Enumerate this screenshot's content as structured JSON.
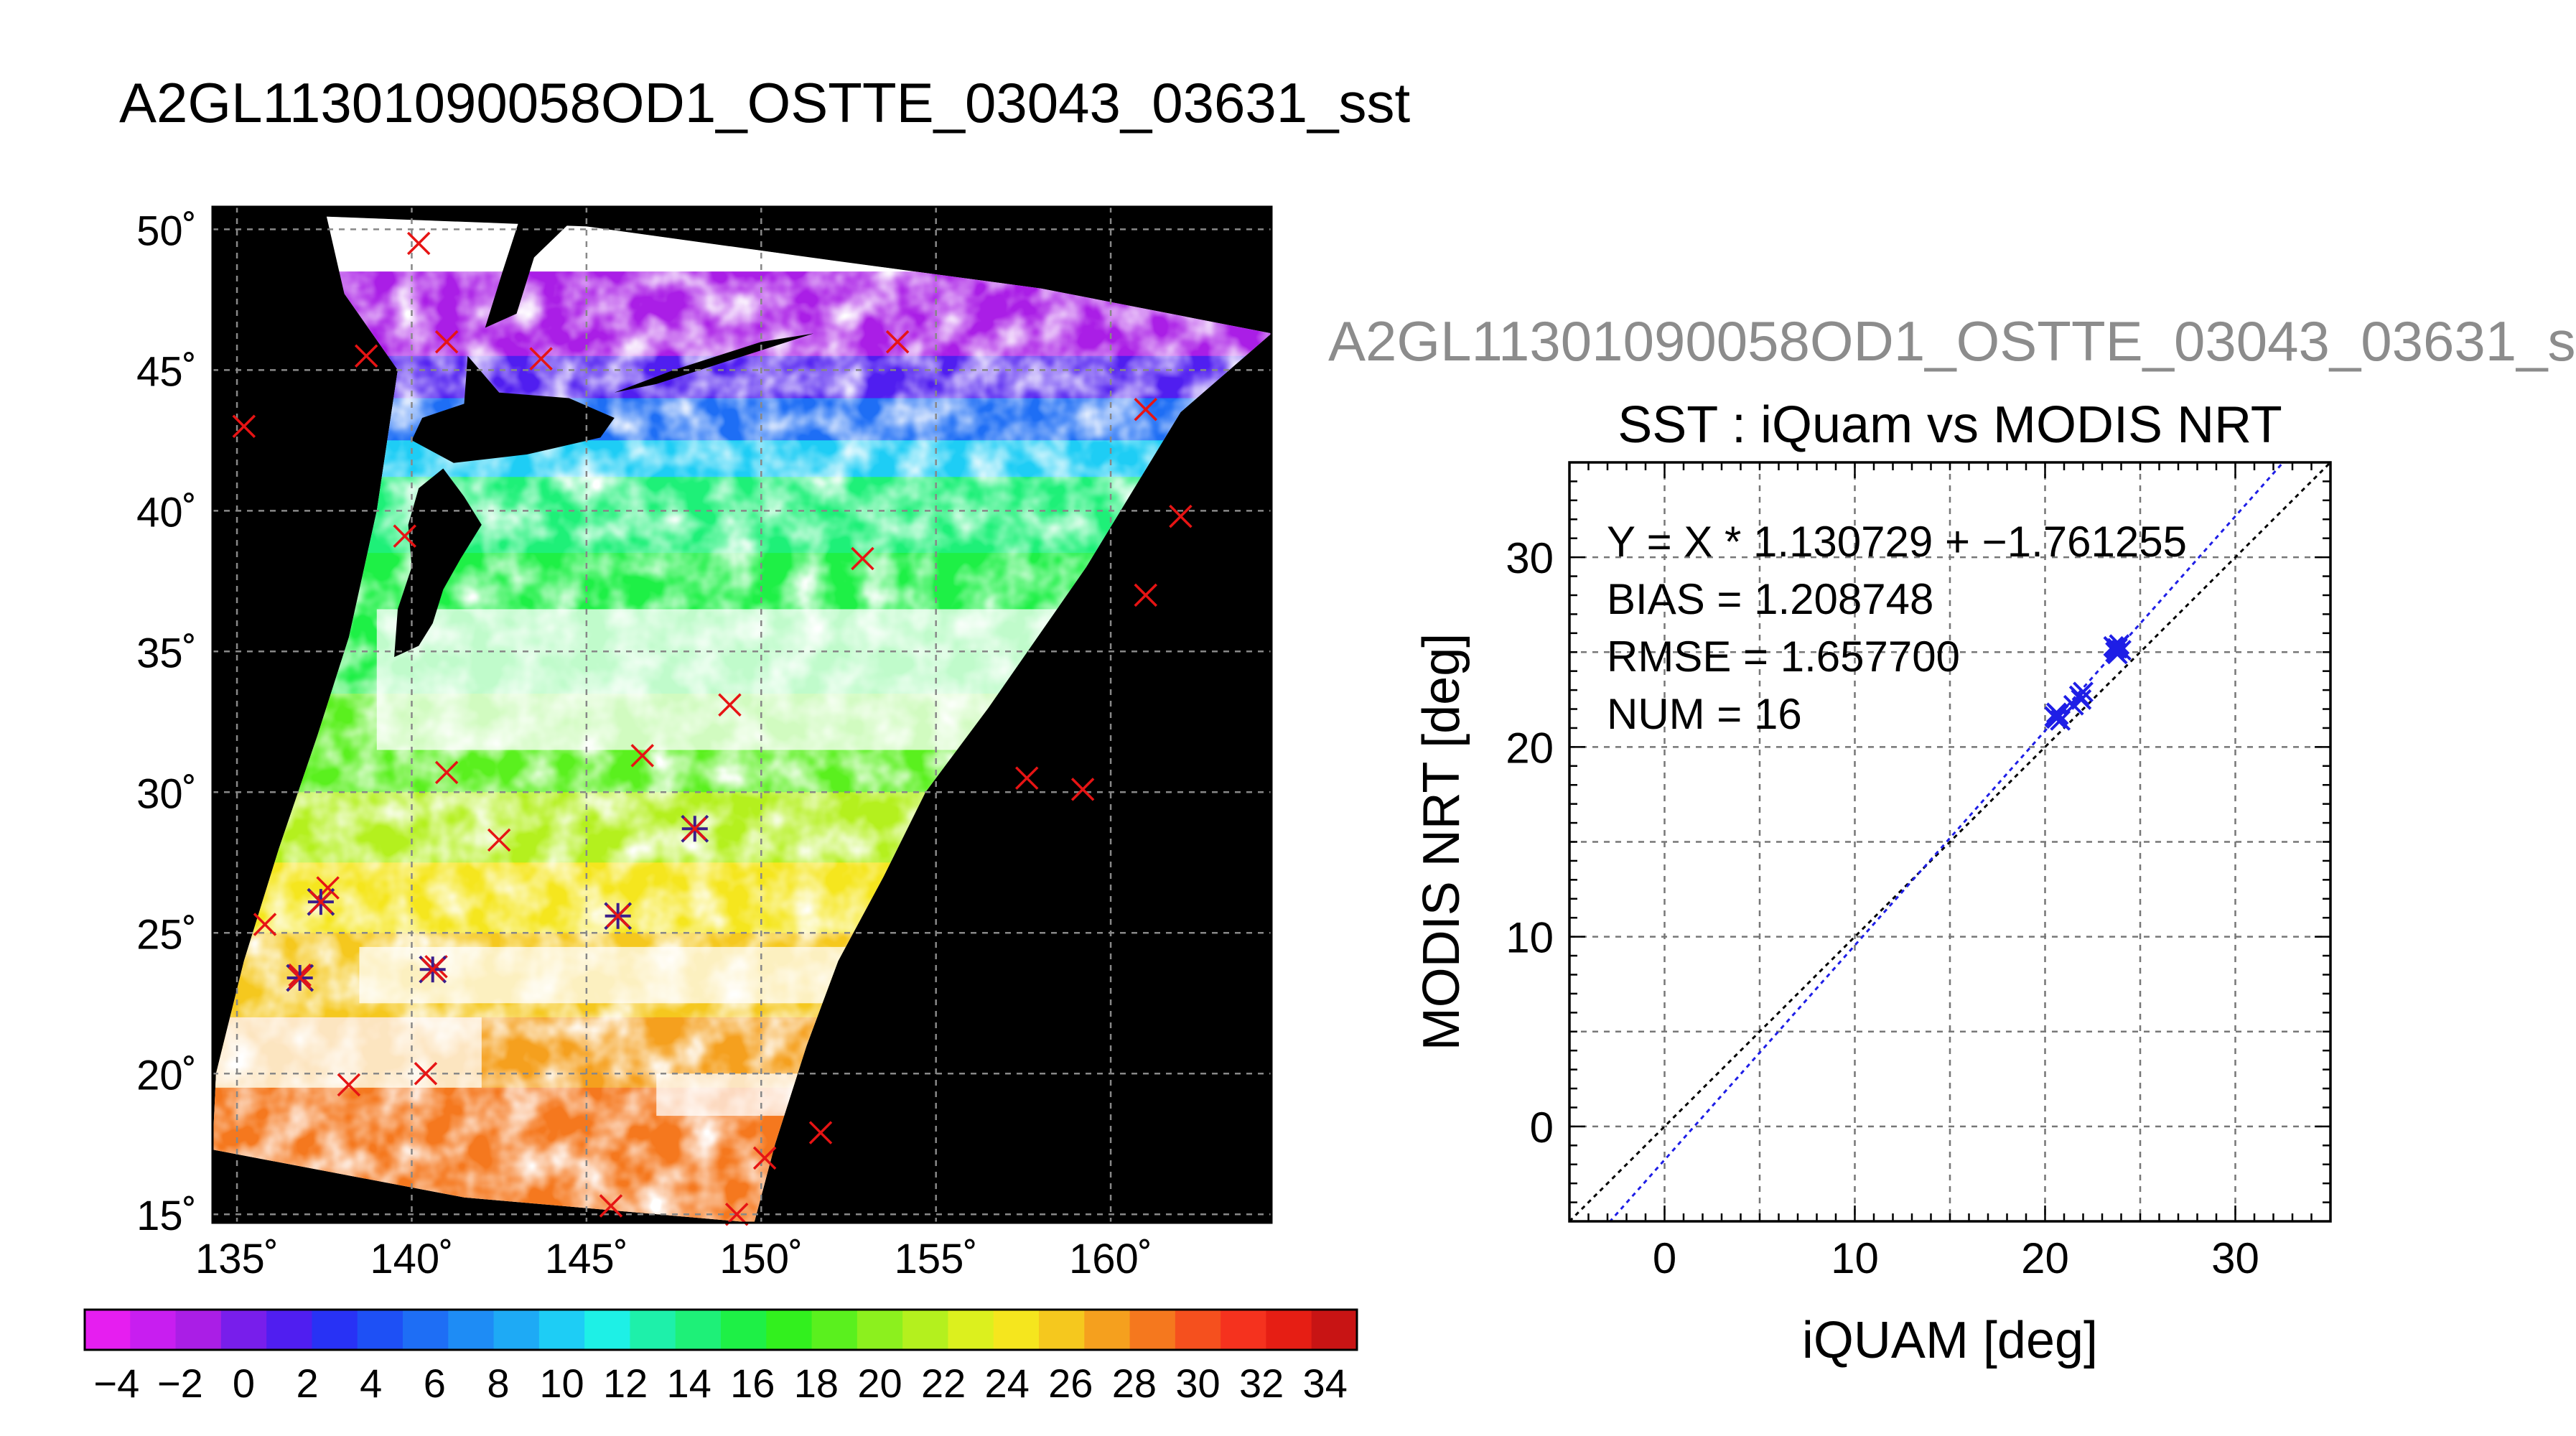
{
  "header": {
    "title": "A2GL11301090058OD1_OSTTE_03043_03631_sst",
    "subtitle": "A2GL11301090058OD1_OSTTE_03043_03631_s"
  },
  "chart_data": [
    {
      "type": "map",
      "lat_ticks": [
        "50˚",
        "45˚",
        "40˚",
        "35˚",
        "30˚",
        "25˚",
        "20˚",
        "15˚"
      ],
      "lon_ticks": [
        "135˚",
        "140˚",
        "145˚",
        "150˚",
        "155˚",
        "160˚"
      ],
      "lon_range": [
        134.3,
        164.6
      ],
      "lat_range": [
        14.7,
        50.8
      ],
      "grid": true,
      "legend_colorbar": {
        "ticks": [
          "−4",
          "−2",
          "0",
          "2",
          "4",
          "6",
          "8",
          "10",
          "12",
          "14",
          "16",
          "18",
          "20",
          "22",
          "24",
          "26",
          "28",
          "30",
          "32",
          "34"
        ],
        "range": [
          -5,
          35
        ],
        "colors": [
          "#e61ef0",
          "#c81ef0",
          "#aa1ee6",
          "#781eeb",
          "#501ef0",
          "#2832f5",
          "#1e50f5",
          "#1e6ef5",
          "#1e8cf5",
          "#1eaaf5",
          "#1ecdf5",
          "#1ef0e6",
          "#1ef0aa",
          "#1ef078",
          "#1ef046",
          "#32f01e",
          "#5af01e",
          "#8cf01e",
          "#b4f01e",
          "#dcf01e",
          "#f5e61e",
          "#f5c81e",
          "#f5a01e",
          "#f5781e",
          "#f5501e",
          "#f5321e",
          "#e61e14",
          "#c81414"
        ]
      },
      "points_red": [
        [
          135.2,
          43.0
        ],
        [
          138.7,
          45.5
        ],
        [
          141.0,
          46.0
        ],
        [
          143.7,
          45.4
        ],
        [
          140.2,
          49.5
        ],
        [
          139.8,
          39.1
        ],
        [
          153.9,
          46.0
        ],
        [
          161.0,
          43.6
        ],
        [
          162.0,
          39.8
        ],
        [
          161.0,
          37.0
        ],
        [
          152.9,
          38.3
        ],
        [
          149.1,
          33.1
        ],
        [
          146.6,
          31.3
        ],
        [
          141.0,
          30.7
        ],
        [
          142.5,
          28.3
        ],
        [
          157.6,
          30.5
        ],
        [
          159.2,
          30.1
        ],
        [
          135.8,
          25.3
        ],
        [
          137.6,
          26.6
        ],
        [
          138.2,
          19.6
        ],
        [
          140.4,
          20.0
        ],
        [
          150.1,
          17.0
        ],
        [
          151.7,
          17.9
        ],
        [
          145.7,
          15.3
        ],
        [
          149.3,
          15.0
        ],
        [
          140.7,
          23.8
        ],
        [
          136.8,
          23.5
        ]
      ],
      "points_blue": [
        [
          148.1,
          28.7
        ],
        [
          137.4,
          26.1
        ],
        [
          145.9,
          25.6
        ],
        [
          140.6,
          23.7
        ],
        [
          136.8,
          23.4
        ]
      ]
    },
    {
      "type": "scatter",
      "title": "SST : iQuam vs MODIS NRT",
      "xlabel": "iQUAM [deg]",
      "ylabel": "MODIS NRT [deg]",
      "xlim": [
        -5,
        35
      ],
      "ylim": [
        -5,
        35
      ],
      "x_ticks": [
        "0",
        "10",
        "20",
        "30"
      ],
      "y_ticks": [
        "0",
        "10",
        "20",
        "30"
      ],
      "grid": true,
      "annotations": [
        "Y = X * 1.130729 + −1.761255",
        "BIAS = 1.208748",
        "RMSE = 1.657700",
        "NUM = 16"
      ],
      "fit": {
        "slope": 1.130729,
        "intercept": -1.761255
      },
      "points": [
        [
          20.5,
          21.6
        ],
        [
          20.6,
          21.8
        ],
        [
          20.8,
          21.4
        ],
        [
          21.5,
          22.2
        ],
        [
          21.8,
          22.7
        ],
        [
          22.0,
          22.9
        ],
        [
          23.6,
          25.3
        ],
        [
          23.7,
          25.0
        ],
        [
          23.8,
          25.2
        ],
        [
          24.0,
          25.1
        ],
        [
          23.9,
          25.4
        ],
        [
          20.7,
          21.7
        ],
        [
          21.9,
          22.5
        ],
        [
          23.7,
          25.2
        ],
        [
          20.6,
          21.5
        ],
        [
          23.8,
          24.9
        ]
      ]
    }
  ]
}
